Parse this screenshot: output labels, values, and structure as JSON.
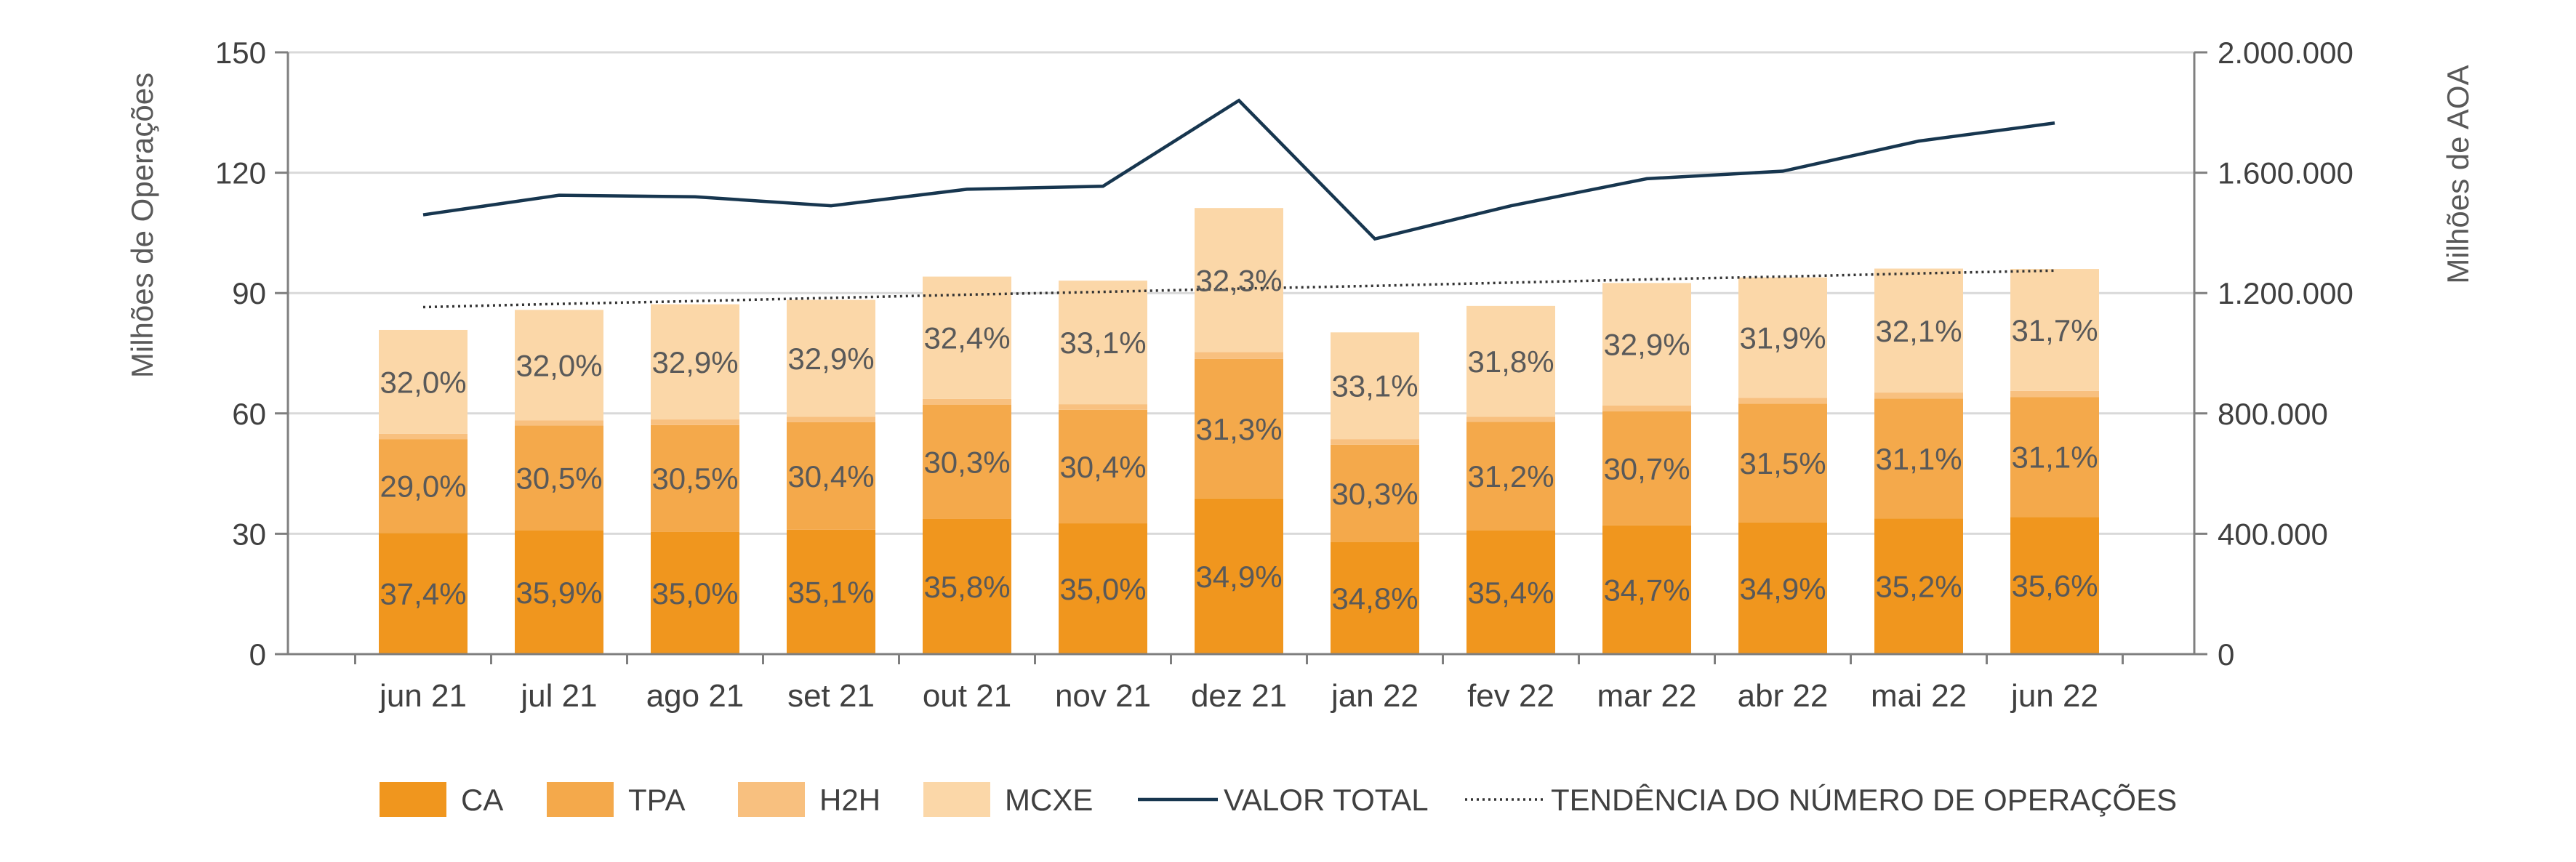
{
  "chart_data": {
    "type": "bar",
    "stacked": true,
    "ylabel": "Milhões de Operações",
    "y2label": "Milhões de AOA",
    "ylim": [
      0,
      150
    ],
    "y2lim": [
      0,
      2000000
    ],
    "yticks": [
      "0",
      "30",
      "60",
      "90",
      "120",
      "150"
    ],
    "y2ticks": [
      "0",
      "400.000",
      "800.000",
      "1.200.000",
      "1.600.000",
      "2.000.000"
    ],
    "grid": true,
    "legend": "bottom",
    "categories": [
      "jun 21",
      "jul 21",
      "ago 21",
      "set 21",
      "out 21",
      "nov 21",
      "dez 21",
      "jan 22",
      "fev 22",
      "mar 22",
      "abr 22",
      "mai 22",
      "jun 22"
    ],
    "series": [
      {
        "name": "CA",
        "color": "#f0961e",
        "values": [
          30.2,
          30.8,
          30.5,
          31.0,
          33.7,
          32.6,
          38.8,
          27.9,
          30.8,
          32.1,
          32.8,
          33.8,
          34.2
        ],
        "labels": [
          "37,4%",
          "35,9%",
          "35,0%",
          "35,1%",
          "35,8%",
          "35,0%",
          "34,9%",
          "34,8%",
          "35,4%",
          "34,7%",
          "34,9%",
          "35,2%",
          "35,6%"
        ]
      },
      {
        "name": "TPA",
        "color": "#f4a94b",
        "values": [
          23.4,
          26.2,
          26.6,
          26.8,
          28.5,
          28.3,
          34.8,
          24.3,
          27.1,
          28.4,
          29.6,
          29.9,
          29.9
        ],
        "labels": [
          "29,0%",
          "30,5%",
          "30,5%",
          "30,4%",
          "30,3%",
          "30,4%",
          "31,3%",
          "30,3%",
          "31,2%",
          "30,7%",
          "31,5%",
          "31,1%",
          "31,1%"
        ]
      },
      {
        "name": "H2H",
        "color": "#f8c07f",
        "values": [
          1.3,
          1.3,
          1.4,
          1.4,
          1.4,
          1.4,
          1.7,
          1.4,
          1.3,
          1.5,
          1.5,
          1.5,
          1.5
        ],
        "labels": [
          "",
          "",
          "",
          "",
          "",
          "",
          "",
          "",
          "",
          "",
          "",
          "",
          ""
        ]
      },
      {
        "name": "MCXE",
        "color": "#fbd7a8",
        "values": [
          25.9,
          27.5,
          28.7,
          29.1,
          30.5,
          30.8,
          35.9,
          26.6,
          27.6,
          30.5,
          30.0,
          30.9,
          30.4
        ],
        "labels": [
          "32,0%",
          "32,0%",
          "32,9%",
          "32,9%",
          "32,4%",
          "33,1%",
          "32,3%",
          "33,1%",
          "31,8%",
          "32,9%",
          "31,9%",
          "32,1%",
          "31,7%"
        ]
      }
    ],
    "lines": [
      {
        "name": "VALOR TOTAL",
        "color": "#17364f",
        "axis": "right",
        "style": "solid",
        "values": [
          1460000,
          1525000,
          1520000,
          1490000,
          1545000,
          1555000,
          1840000,
          1380000,
          1490000,
          1580000,
          1605000,
          1705000,
          1765000
        ]
      },
      {
        "name": "TENDÊNCIA DO NÚMERO DE OPERAÇÕES",
        "color": "#333333",
        "axis": "left",
        "style": "dotted",
        "values": [
          86.5,
          87.3,
          88.0,
          88.8,
          89.6,
          90.3,
          91.1,
          91.8,
          92.6,
          93.4,
          94.1,
          94.9,
          95.6
        ]
      }
    ]
  }
}
